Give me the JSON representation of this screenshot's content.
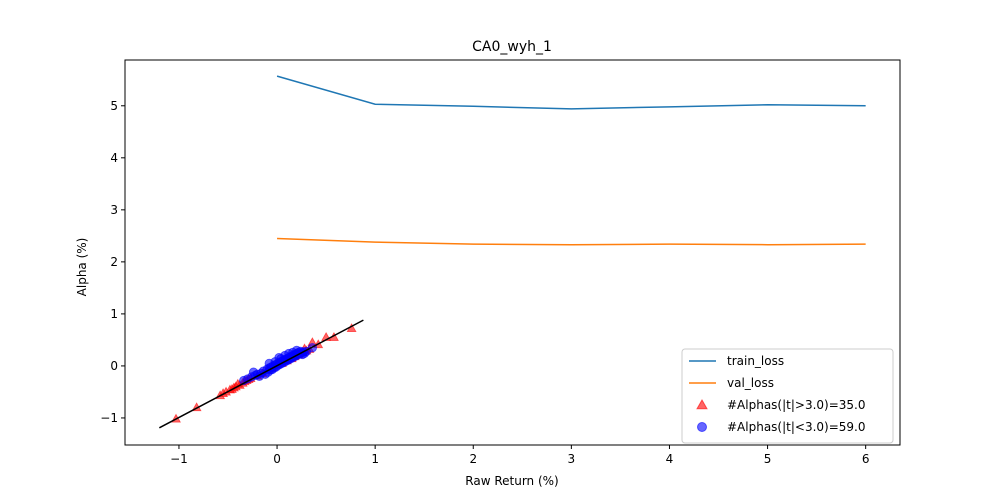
{
  "chart_data": {
    "type": "line",
    "title": "CA0_wyh_1",
    "xlabel": "Raw Return (%)",
    "ylabel": "Alpha (%)",
    "xlim": [
      -1.55,
      6.35
    ],
    "ylim": [
      -1.52,
      5.88
    ],
    "xticks": [
      -1,
      0,
      1,
      2,
      3,
      4,
      5,
      6
    ],
    "yticks": [
      -1,
      0,
      1,
      2,
      3,
      4,
      5
    ],
    "xtick_labels": [
      "−1",
      "0",
      "1",
      "2",
      "3",
      "4",
      "5",
      "6"
    ],
    "ytick_labels": [
      "−1",
      "0",
      "1",
      "2",
      "3",
      "4",
      "5"
    ],
    "grid": false,
    "legend_position": "lower-right",
    "series": [
      {
        "name": "train_loss",
        "kind": "line",
        "color": "#1f77b4",
        "x": [
          0,
          1,
          2,
          3,
          4,
          5,
          6
        ],
        "y": [
          5.57,
          5.03,
          4.99,
          4.94,
          4.98,
          5.02,
          5.0
        ]
      },
      {
        "name": "val_loss",
        "kind": "line",
        "color": "#ff7f0e",
        "x": [
          0,
          1,
          2,
          3,
          4,
          5,
          6
        ],
        "y": [
          2.45,
          2.38,
          2.34,
          2.33,
          2.34,
          2.33,
          2.34
        ]
      },
      {
        "name": "#Alphas(|t|>3.0)=35.0",
        "kind": "scatter",
        "marker": "triangle",
        "color": "#ff0000",
        "points": [
          [
            -1.03,
            -1.02
          ],
          [
            -0.82,
            -0.8
          ],
          [
            -0.58,
            -0.57
          ],
          [
            -0.55,
            -0.53
          ],
          [
            -0.52,
            -0.5
          ],
          [
            -0.48,
            -0.46
          ],
          [
            -0.46,
            -0.45
          ],
          [
            -0.44,
            -0.42
          ],
          [
            -0.42,
            -0.4
          ],
          [
            -0.4,
            -0.35
          ],
          [
            -0.38,
            -0.37
          ],
          [
            -0.35,
            -0.33
          ],
          [
            -0.33,
            -0.3
          ],
          [
            -0.31,
            -0.28
          ],
          [
            -0.29,
            -0.26
          ],
          [
            -0.27,
            -0.24
          ],
          [
            -0.2,
            -0.19
          ],
          [
            -0.15,
            -0.15
          ],
          [
            -0.1,
            -0.08
          ],
          [
            -0.05,
            -0.04
          ],
          [
            0.0,
            0.02
          ],
          [
            0.05,
            0.05
          ],
          [
            0.1,
            0.1
          ],
          [
            0.15,
            0.14
          ],
          [
            0.18,
            0.18
          ],
          [
            0.22,
            0.21
          ],
          [
            0.26,
            0.26
          ],
          [
            0.3,
            0.29
          ],
          [
            0.33,
            0.32
          ],
          [
            0.36,
            0.45
          ],
          [
            0.42,
            0.41
          ],
          [
            0.5,
            0.55
          ],
          [
            0.58,
            0.55
          ],
          [
            0.76,
            0.72
          ],
          [
            0.28,
            0.33
          ]
        ]
      },
      {
        "name": "#Alphas(|t|<3.0)=59.0",
        "kind": "scatter",
        "marker": "circle",
        "color": "#0000ff",
        "points": [
          [
            -0.34,
            -0.28
          ],
          [
            -0.3,
            -0.25
          ],
          [
            -0.26,
            -0.21
          ],
          [
            -0.24,
            -0.12
          ],
          [
            -0.22,
            -0.18
          ],
          [
            -0.2,
            -0.16
          ],
          [
            -0.18,
            -0.2
          ],
          [
            -0.16,
            -0.14
          ],
          [
            -0.14,
            -0.1
          ],
          [
            -0.12,
            -0.16
          ],
          [
            -0.1,
            -0.06
          ],
          [
            -0.09,
            -0.12
          ],
          [
            -0.08,
            -0.04
          ],
          [
            -0.07,
            -0.08
          ],
          [
            -0.06,
            -0.02
          ],
          [
            -0.05,
            -0.07
          ],
          [
            -0.04,
            0.0
          ],
          [
            -0.03,
            -0.04
          ],
          [
            -0.02,
            0.02
          ],
          [
            -0.01,
            -0.02
          ],
          [
            0.0,
            0.04
          ],
          [
            0.01,
            0.01
          ],
          [
            0.02,
            0.06
          ],
          [
            0.03,
            0.03
          ],
          [
            0.04,
            0.08
          ],
          [
            0.05,
            0.05
          ],
          [
            0.06,
            0.1
          ],
          [
            0.07,
            0.07
          ],
          [
            0.08,
            0.12
          ],
          [
            0.09,
            0.09
          ],
          [
            0.1,
            0.14
          ],
          [
            0.11,
            0.11
          ],
          [
            0.12,
            0.16
          ],
          [
            0.13,
            0.13
          ],
          [
            0.14,
            0.18
          ],
          [
            0.15,
            0.15
          ],
          [
            0.16,
            0.2
          ],
          [
            0.17,
            0.17
          ],
          [
            0.18,
            0.22
          ],
          [
            0.19,
            0.19
          ],
          [
            0.2,
            0.24
          ],
          [
            0.21,
            0.21
          ],
          [
            0.22,
            0.26
          ],
          [
            0.23,
            0.23
          ],
          [
            0.24,
            0.28
          ],
          [
            0.25,
            0.25
          ],
          [
            0.26,
            0.22
          ],
          [
            0.27,
            0.27
          ],
          [
            0.28,
            0.24
          ],
          [
            0.3,
            0.28
          ],
          [
            0.04,
            0.14
          ],
          [
            0.08,
            0.2
          ],
          [
            0.12,
            0.24
          ],
          [
            0.16,
            0.26
          ],
          [
            -0.02,
            0.08
          ],
          [
            0.02,
            0.16
          ],
          [
            0.2,
            0.3
          ],
          [
            0.36,
            0.35
          ],
          [
            -0.08,
            0.05
          ]
        ]
      },
      {
        "name": "",
        "kind": "fit_line",
        "color": "#000000",
        "x": [
          -1.2,
          0.88
        ],
        "y": [
          -1.19,
          0.88
        ]
      }
    ]
  }
}
